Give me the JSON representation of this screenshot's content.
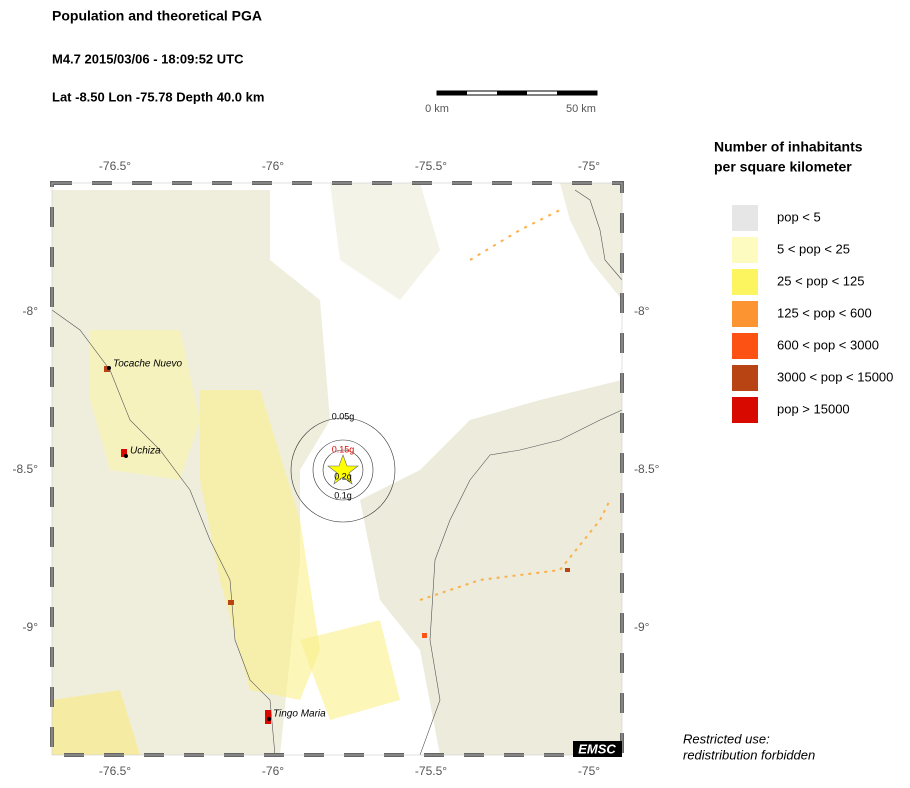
{
  "header": {
    "title": "Population and theoretical PGA",
    "event": "M4.7  2015/03/06 - 18:09:52 UTC",
    "location": "Lat -8.50    Lon -75.78     Depth  40.0 km"
  },
  "scale_bar": {
    "start": "0 km",
    "end": "50 km"
  },
  "map": {
    "lon_labels": [
      "-76.5°",
      "-76°",
      "-75.5°",
      "-75°"
    ],
    "lat_labels": [
      "-8°",
      "-8.5°",
      "-9°"
    ],
    "cities": [
      "Tocache Nuevo",
      "Uchiza",
      "Tingo Maria"
    ],
    "pga_labels": [
      "0.05g",
      "0.15g",
      "0.2g",
      "0.1g"
    ],
    "logo": "EMSC"
  },
  "legend": {
    "title": [
      "Number of inhabitants",
      "per square kilometer"
    ],
    "items": [
      {
        "label": "pop < 5",
        "color": "#e6e6e6"
      },
      {
        "label": "5 < pop < 25",
        "color": "#fdfbc0"
      },
      {
        "label": "25 < pop < 125",
        "color": "#fdf560"
      },
      {
        "label": "125 < pop < 600",
        "color": "#fc9432"
      },
      {
        "label": "600 < pop < 3000",
        "color": "#fc5214"
      },
      {
        "label": "3000 < pop < 15000",
        "color": "#b84414"
      },
      {
        "label": "pop > 15000",
        "color": "#d80a00"
      }
    ]
  },
  "notice": [
    "Restricted use:",
    "redistribution forbidden"
  ]
}
